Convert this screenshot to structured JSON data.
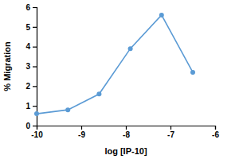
{
  "chart_data": {
    "type": "line",
    "x_label": "log [IP-10]",
    "y_label": "% Migration",
    "x": [
      -10,
      -9.3,
      -8.6,
      -7.9,
      -7.2,
      -6.5
    ],
    "values": [
      0.6,
      0.8,
      1.6,
      3.9,
      5.6,
      2.7
    ],
    "color": "#5b9bd5",
    "marker": "circle",
    "xlim": [
      -10,
      -6
    ],
    "xticks": [
      -10,
      -9,
      -8,
      -7,
      -6
    ],
    "ylim": [
      0,
      6
    ],
    "yticks": [
      0,
      1,
      2,
      3,
      4,
      5,
      6
    ],
    "grid": false
  }
}
